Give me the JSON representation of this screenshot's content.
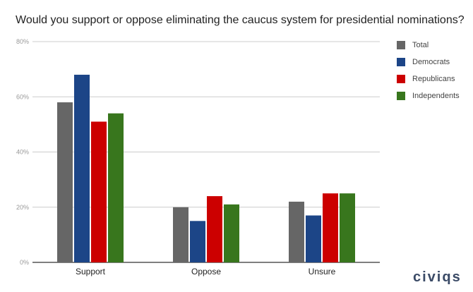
{
  "chart_data": {
    "type": "bar",
    "title": "Would you support or oppose eliminating the caucus system for presidential nominations?",
    "categories": [
      "Support",
      "Oppose",
      "Unsure"
    ],
    "series": [
      {
        "name": "Total",
        "color": "#666666",
        "values": [
          58,
          20,
          22
        ]
      },
      {
        "name": "Democrats",
        "color": "#1c4587",
        "values": [
          68,
          15,
          17
        ]
      },
      {
        "name": "Republicans",
        "color": "#cc0000",
        "values": [
          51,
          24,
          25
        ]
      },
      {
        "name": "Independents",
        "color": "#38761d",
        "values": [
          54,
          21,
          25
        ]
      }
    ],
    "ylim": [
      0,
      80
    ],
    "yticks": [
      "0%",
      "20%",
      "40%",
      "60%",
      "80%"
    ],
    "ytick_values": [
      0,
      20,
      40,
      60,
      80
    ],
    "grid": true,
    "legend_position": "right"
  },
  "logo_text": "civiqs"
}
